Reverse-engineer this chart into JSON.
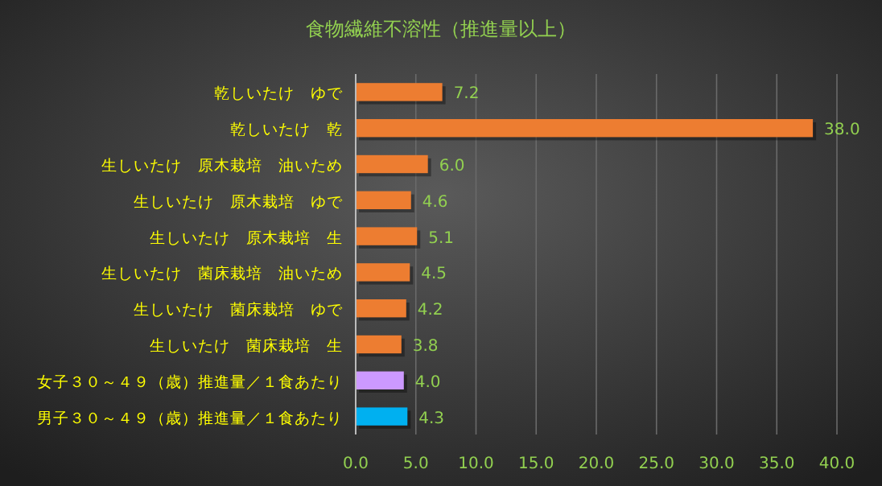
{
  "chart_data": {
    "type": "bar",
    "orientation": "horizontal",
    "title": "食物繊維不溶性（推進量以上）",
    "categories": [
      "乾しいたけ　ゆで",
      "乾しいたけ　乾",
      "生しいたけ　原木栽培　油いため",
      "生しいたけ　原木栽培　ゆで",
      "生しいたけ　原木栽培　生",
      "生しいたけ　菌床栽培　油いため",
      "生しいたけ　菌床栽培　ゆで",
      "生しいたけ　菌床栽培　生",
      "女子３０～４９（歳）推進量／１食あたり",
      "男子３０～４９（歳）推進量／１食あたり"
    ],
    "values": [
      7.2,
      38.0,
      6.0,
      4.6,
      5.1,
      4.5,
      4.2,
      3.8,
      4.0,
      4.3
    ],
    "value_labels": [
      "7.2",
      "38.0",
      "6.0",
      "4.6",
      "5.1",
      "4.5",
      "4.2",
      "3.8",
      "4.0",
      "4.3"
    ],
    "colors": [
      "#ed7d31",
      "#ed7d31",
      "#ed7d31",
      "#ed7d31",
      "#ed7d31",
      "#ed7d31",
      "#ed7d31",
      "#ed7d31",
      "#cc99ff",
      "#00b0f0"
    ],
    "xlim": [
      0,
      40
    ],
    "xticks": [
      {
        "value": 0,
        "label": "0.0"
      },
      {
        "value": 5,
        "label": "5.0"
      },
      {
        "value": 10,
        "label": "10.0"
      },
      {
        "value": 15,
        "label": "15.0"
      },
      {
        "value": 20,
        "label": "20.0"
      },
      {
        "value": 25,
        "label": "25.0"
      },
      {
        "value": 30,
        "label": "30.0"
      },
      {
        "value": 35,
        "label": "35.0"
      },
      {
        "value": 40,
        "label": "40.0"
      }
    ],
    "grid": "x"
  }
}
